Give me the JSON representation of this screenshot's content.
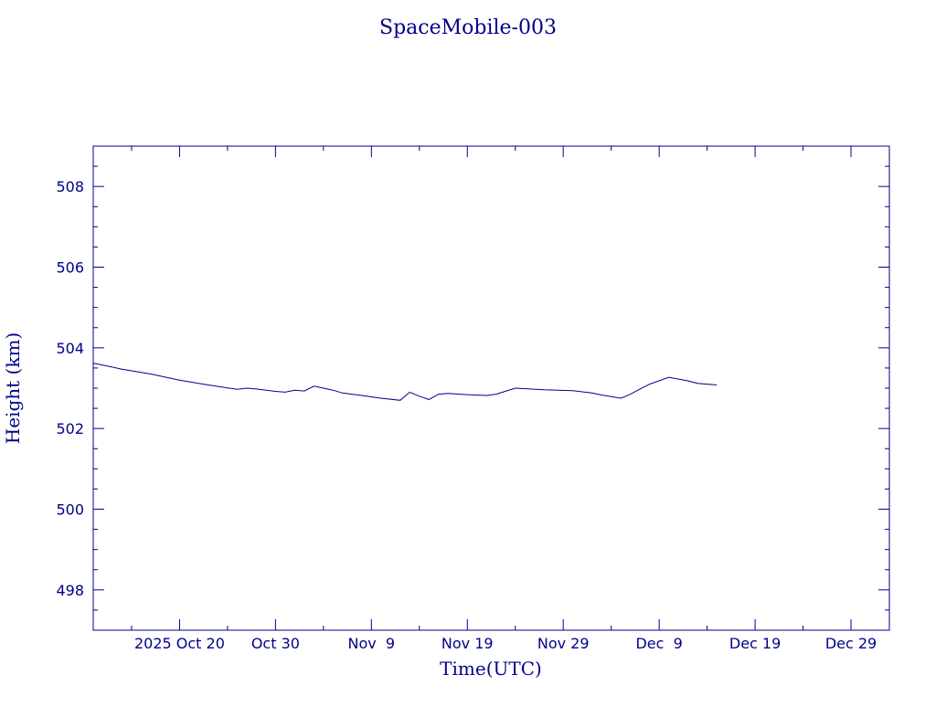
{
  "colors": {
    "axis": "#00008b",
    "series": "#00008b",
    "background": "#ffffff"
  },
  "chart_data": {
    "type": "line",
    "title": "SpaceMobile-003",
    "xlabel": "Time(UTC)",
    "ylabel": "Height (km)",
    "xlim": [
      "2025-10-11",
      "2026-01-02"
    ],
    "ylim": [
      497,
      509
    ],
    "grid": false,
    "legend": "none",
    "x_tick_labels": [
      "2025 Oct 20",
      "Oct 30",
      "Nov  9",
      "Nov 19",
      "Nov 29",
      "Dec  9",
      "Dec 19",
      "Dec 29"
    ],
    "x_ticks": [
      "2025-10-20",
      "2025-10-30",
      "2025-11-09",
      "2025-11-19",
      "2025-11-29",
      "2025-12-09",
      "2025-12-19",
      "2025-12-29"
    ],
    "y_tick_labels": [
      "498",
      "500",
      "502",
      "504",
      "506",
      "508"
    ],
    "y_ticks": [
      498,
      500,
      502,
      504,
      506,
      508
    ],
    "series": [
      {
        "x": [
          "2025-10-11",
          "2025-10-14",
          "2025-10-17",
          "2025-10-20",
          "2025-10-23",
          "2025-10-26",
          "2025-10-27",
          "2025-10-28",
          "2025-10-30",
          "2025-10-31",
          "2025-11-01",
          "2025-11-02",
          "2025-11-03",
          "2025-11-04",
          "2025-11-05",
          "2025-11-06",
          "2025-11-08",
          "2025-11-10",
          "2025-11-12",
          "2025-11-13",
          "2025-11-14",
          "2025-11-15",
          "2025-11-16",
          "2025-11-17",
          "2025-11-19",
          "2025-11-21",
          "2025-11-22",
          "2025-11-24",
          "2025-11-27",
          "2025-11-30",
          "2025-12-02",
          "2025-12-03",
          "2025-12-05",
          "2025-12-06",
          "2025-12-07",
          "2025-12-08",
          "2025-12-10",
          "2025-12-12",
          "2025-12-13",
          "2025-12-15"
        ],
        "y": [
          503.62,
          503.47,
          503.35,
          503.2,
          503.08,
          502.97,
          503.0,
          502.98,
          502.92,
          502.9,
          502.95,
          502.93,
          503.05,
          503.0,
          502.95,
          502.88,
          502.82,
          502.75,
          502.7,
          502.9,
          502.8,
          502.72,
          502.85,
          502.87,
          502.84,
          502.82,
          502.85,
          503.0,
          502.96,
          502.94,
          502.88,
          502.83,
          502.75,
          502.85,
          502.98,
          503.1,
          503.27,
          503.18,
          503.12,
          503.08
        ]
      }
    ]
  }
}
